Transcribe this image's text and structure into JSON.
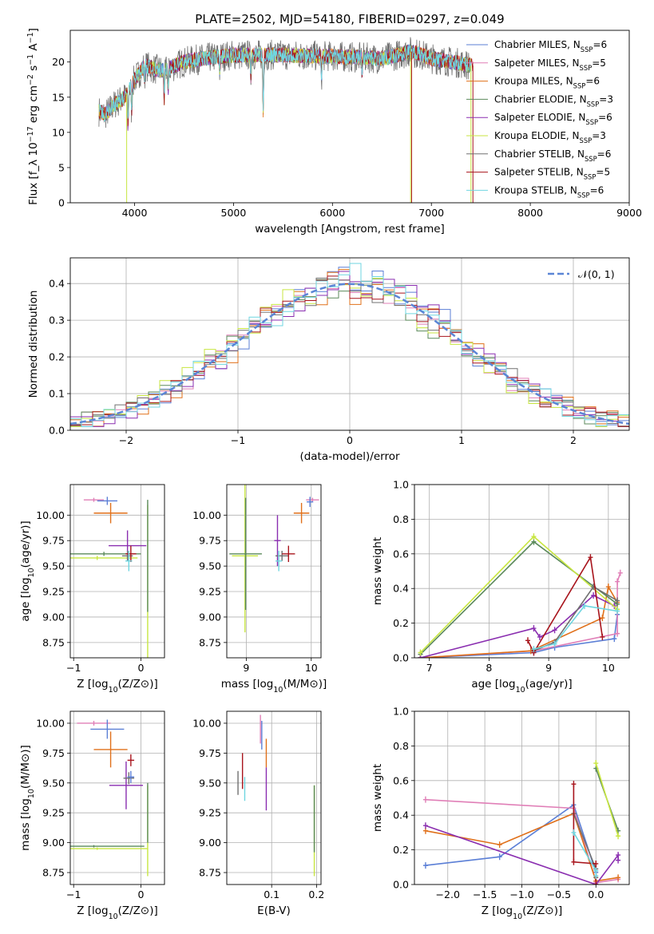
{
  "figure": {
    "title": "PLATE=2502, MJD=54180, FIBERID=0297, z=0.049"
  },
  "colors": {
    "Chabrier MILES": "#5b7fd6",
    "Salpeter MILES": "#e07fb7",
    "Kroupa MILES": "#e0701a",
    "Chabrier ELODIE": "#5b8a5b",
    "Salpeter ELODIE": "#8a2eb0",
    "Kroupa ELODIE": "#c8e641",
    "Chabrier STELIB": "#707070",
    "Salpeter STELIB": "#a8141c",
    "Kroupa STELIB": "#6fd6e0",
    "normal": "#5b86d6"
  },
  "chart_data": [
    {
      "id": "spectrum",
      "type": "line",
      "title": "PLATE=2502, MJD=54180, FIBERID=0297, z=0.049",
      "xlabel": "wavelength [Angstrom, rest frame]",
      "ylabel": "Flux [f_λ 10^-17 erg cm^-2 s^-1 A^-1]",
      "xlim": [
        3350,
        9000
      ],
      "ylim": [
        0,
        24.5
      ],
      "xticks": [
        4000,
        5000,
        6000,
        7000,
        8000,
        9000
      ],
      "yticks": [
        0,
        5,
        10,
        15,
        20
      ],
      "grid": false,
      "legend_position": "top-right",
      "legend": [
        "Chabrier MILES, N_SSP=6",
        "Salpeter MILES, N_SSP=5",
        "Kroupa MILES, N_SSP=6",
        "Chabrier ELODIE, N_SSP=3",
        "Salpeter ELODIE, N_SSP=6",
        "Kroupa ELODIE, N_SSP=3",
        "Chabrier STELIB, N_SSP=6",
        "Salpeter STELIB, N_SSP=5",
        "Kroupa STELIB, N_SSP=6"
      ],
      "continuum": {
        "x": [
          3640,
          3700,
          3800,
          3900,
          4000,
          4100,
          4200,
          4300,
          4500,
          4700,
          5000,
          5500,
          6000,
          6500,
          6800,
          7000,
          7300,
          7400
        ],
        "y": [
          13,
          12.5,
          14,
          15,
          17.5,
          19.5,
          19,
          18.8,
          20,
          20.5,
          21,
          21,
          20.8,
          20.5,
          21.5,
          20.5,
          19.8,
          19.5
        ]
      },
      "model_end": {
        "Salpeter STELIB": 7420,
        "others": 7400
      },
      "features": [
        {
          "x": 3934,
          "depth": 5
        },
        {
          "x": 3970,
          "depth": 4
        },
        {
          "x": 4101,
          "depth": 2
        },
        {
          "x": 4300,
          "depth": 4
        },
        {
          "x": 4340,
          "depth": 3
        },
        {
          "x": 4861,
          "depth": 2
        },
        {
          "x": 5175,
          "depth": 3
        },
        {
          "x": 5300,
          "depth": 8
        },
        {
          "x": 5890,
          "depth": 3
        },
        {
          "x": 6300,
          "depth": 2
        }
      ],
      "spikes": [
        {
          "x": 3920,
          "to": 0,
          "series": "Kroupa ELODIE"
        },
        {
          "x": 6800,
          "to": 0,
          "series": "Salpeter STELIB"
        },
        {
          "x": 6790,
          "to": 0,
          "series": "Kroupa ELODIE"
        },
        {
          "x": 7420,
          "to": 0,
          "series": "Salpeter STELIB"
        },
        {
          "x": 7400,
          "to": 0,
          "series": "Kroupa ELODIE"
        }
      ]
    },
    {
      "id": "residuals",
      "type": "histogram",
      "xlabel": "(data-model)/error",
      "ylabel": "Normed distribution",
      "xlim": [
        -2.5,
        2.5
      ],
      "ylim": [
        0,
        0.47
      ],
      "xticks": [
        -2,
        -1,
        0,
        1,
        2
      ],
      "yticks": [
        0,
        0.1,
        0.2,
        0.3,
        0.4
      ],
      "grid": true,
      "legend_position": "top-right",
      "reference_curve": {
        "label": "N(0,1)",
        "mean": 0,
        "sigma": 1,
        "style": "dashed"
      },
      "bin_width": 0.1,
      "series_offsets": [
        0.01,
        -0.015,
        0.02,
        -0.01,
        0.015,
        -0.02,
        0.005,
        -0.005,
        0.012
      ]
    },
    {
      "id": "age-vs-Z",
      "type": "scatter",
      "xlabel": "Z [log10(Z/Z⊙)]",
      "ylabel": "age [log10(age/yr)]",
      "xlim": [
        -1.05,
        0.35
      ],
      "ylim": [
        8.6,
        10.3
      ],
      "xticks": [
        -1,
        0
      ],
      "yticks": [
        8.75,
        9.0,
        9.25,
        9.5,
        9.75,
        10.0
      ],
      "grid": true,
      "points": [
        {
          "series": "Salpeter MILES",
          "x": -0.7,
          "y": 10.15,
          "xerr": 0.15,
          "yerr": 0.02
        },
        {
          "series": "Chabrier MILES",
          "x": -0.5,
          "y": 10.14,
          "xerr": 0.15,
          "yerr": 0.04
        },
        {
          "series": "Kroupa MILES",
          "x": -0.45,
          "y": 10.02,
          "xerr": 0.25,
          "yerr": 0.1
        },
        {
          "series": "Salpeter ELODIE",
          "x": -0.2,
          "y": 9.7,
          "xerr": 0.28,
          "yerr": 0.15
        },
        {
          "series": "Chabrier ELODIE",
          "x": -0.55,
          "y": 9.62,
          "xerr": 0.55,
          "yerr": 0.02
        },
        {
          "series": "Kroupa ELODIE",
          "x": -0.65,
          "y": 9.58,
          "xerr": 0.6,
          "yerr": 0.02
        },
        {
          "series": "Chabrier STELIB",
          "x": -0.2,
          "y": 9.6,
          "xerr": 0.08,
          "yerr": 0.05
        },
        {
          "series": "Salpeter STELIB",
          "x": -0.15,
          "y": 9.62,
          "xerr": 0.08,
          "yerr": 0.08
        },
        {
          "series": "Kroupa STELIB",
          "x": -0.18,
          "y": 9.55,
          "xerr": 0.05,
          "yerr": 0.1
        },
        {
          "series": "Kroupa ELODIE",
          "x": 0.1,
          "y": 9.35,
          "xerr": 0,
          "yerr": 0.75
        },
        {
          "series": "Chabrier ELODIE",
          "x": 0.1,
          "y": 9.6,
          "xerr": 0,
          "yerr": 0.55
        }
      ]
    },
    {
      "id": "age-vs-mass",
      "type": "scatter",
      "xlabel": "mass [log10(M/M⊙)]",
      "ylabel": "",
      "xlim": [
        8.7,
        10.15
      ],
      "ylim": [
        8.6,
        10.3
      ],
      "xticks": [
        9,
        10
      ],
      "yticks": [
        8.75,
        9.0,
        9.25,
        9.5,
        9.75,
        10.0
      ],
      "grid": true,
      "points": [
        {
          "series": "Kroupa ELODIE",
          "x": 8.98,
          "y": 9.6,
          "xerr": 0.2,
          "yerr": 0.75
        },
        {
          "series": "Chabrier ELODIE",
          "x": 8.99,
          "y": 9.62,
          "xerr": 0.25,
          "yerr": 0.55
        },
        {
          "series": "Salpeter ELODIE",
          "x": 9.48,
          "y": 9.75,
          "xerr": 0.05,
          "yerr": 0.25
        },
        {
          "series": "Kroupa MILES",
          "x": 9.85,
          "y": 10.02,
          "xerr": 0.12,
          "yerr": 0.1
        },
        {
          "series": "Salpeter MILES",
          "x": 10.02,
          "y": 10.15,
          "xerr": 0.1,
          "yerr": 0.02
        },
        {
          "series": "Chabrier MILES",
          "x": 9.98,
          "y": 10.13,
          "xerr": 0.05,
          "yerr": 0.05
        },
        {
          "series": "Chabrier STELIB",
          "x": 9.55,
          "y": 9.6,
          "xerr": 0.1,
          "yerr": 0.05
        },
        {
          "series": "Salpeter STELIB",
          "x": 9.65,
          "y": 9.62,
          "xerr": 0.1,
          "yerr": 0.08
        },
        {
          "series": "Kroupa STELIB",
          "x": 9.5,
          "y": 9.55,
          "xerr": 0.05,
          "yerr": 0.1
        }
      ]
    },
    {
      "id": "massweight-vs-age",
      "type": "line",
      "xlabel": "age [log10(age/yr)]",
      "ylabel": "mass weight",
      "xlim": [
        6.75,
        10.35
      ],
      "ylim": [
        0,
        1.0
      ],
      "xticks": [
        7,
        8,
        9,
        10
      ],
      "yticks": [
        0,
        0.2,
        0.4,
        0.6,
        0.8,
        1.0
      ],
      "grid": true,
      "series": [
        {
          "name": "Chabrier MILES",
          "x": [
            6.85,
            8.75,
            9.1,
            10.1,
            10.15
          ],
          "y": [
            0.0,
            0.03,
            0.06,
            0.11,
            0.25
          ]
        },
        {
          "name": "Salpeter MILES",
          "x": [
            6.85,
            8.75,
            10.15,
            10.15,
            10.2
          ],
          "y": [
            0.0,
            0.04,
            0.14,
            0.44,
            0.49
          ]
        },
        {
          "name": "Kroupa MILES",
          "x": [
            6.85,
            8.7,
            9.9,
            10.0,
            10.15
          ],
          "y": [
            0.0,
            0.04,
            0.23,
            0.41,
            0.32
          ]
        },
        {
          "name": "Chabrier ELODIE",
          "x": [
            6.85,
            8.75,
            10.15
          ],
          "y": [
            0.02,
            0.67,
            0.31
          ]
        },
        {
          "name": "Salpeter ELODIE",
          "x": [
            6.85,
            8.75,
            8.85,
            9.1,
            9.75,
            10.1
          ],
          "y": [
            0.0,
            0.17,
            0.12,
            0.16,
            0.36,
            0.3
          ]
        },
        {
          "name": "Kroupa ELODIE",
          "x": [
            6.85,
            8.75,
            10.15
          ],
          "y": [
            0.03,
            0.7,
            0.28
          ]
        },
        {
          "name": "Chabrier STELIB",
          "x": [
            8.75,
            9.1,
            9.75,
            10.15
          ],
          "y": [
            0.04,
            0.09,
            0.41,
            0.33
          ]
        },
        {
          "name": "Salpeter STELIB",
          "x": [
            8.65,
            8.75,
            9.7,
            9.9
          ],
          "y": [
            0.1,
            0.03,
            0.58,
            0.12
          ]
        },
        {
          "name": "Kroupa STELIB",
          "x": [
            8.75,
            9.1,
            9.6,
            10.15
          ],
          "y": [
            0.05,
            0.08,
            0.3,
            0.27
          ]
        }
      ]
    },
    {
      "id": "mass-vs-Z",
      "type": "scatter",
      "xlabel": "Z [log10(Z/Z⊙)]",
      "ylabel": "mass [log10(M/M⊙)]",
      "xlim": [
        -1.05,
        0.35
      ],
      "ylim": [
        8.65,
        10.1
      ],
      "xticks": [
        -1,
        0
      ],
      "yticks": [
        8.75,
        9.0,
        9.25,
        9.5,
        9.75,
        10.0
      ],
      "grid": true,
      "points": [
        {
          "series": "Salpeter MILES",
          "x": -0.7,
          "y": 10.0,
          "xerr": 0.25,
          "yerr": 0.02
        },
        {
          "series": "Chabrier MILES",
          "x": -0.5,
          "y": 9.95,
          "xerr": 0.25,
          "yerr": 0.08
        },
        {
          "series": "Kroupa MILES",
          "x": -0.45,
          "y": 9.78,
          "xerr": 0.25,
          "yerr": 0.15
        },
        {
          "series": "Salpeter STELIB",
          "x": -0.15,
          "y": 9.69,
          "xerr": 0.05,
          "yerr": 0.05
        },
        {
          "series": "Salpeter ELODIE",
          "x": -0.22,
          "y": 9.48,
          "xerr": 0.25,
          "yerr": 0.2
        },
        {
          "series": "Chabrier STELIB",
          "x": -0.18,
          "y": 9.54,
          "xerr": 0.08,
          "yerr": 0.05
        },
        {
          "series": "Chabrier MILES",
          "x": -0.15,
          "y": 9.55,
          "xerr": 0.05,
          "yerr": 0.05
        },
        {
          "series": "Chabrier ELODIE",
          "x": -0.7,
          "y": 8.97,
          "xerr": 0.75,
          "yerr": 0.01
        },
        {
          "series": "Kroupa ELODIE",
          "x": -0.65,
          "y": 8.95,
          "xerr": 0.75,
          "yerr": 0.01
        },
        {
          "series": "Kroupa ELODIE",
          "x": 0.1,
          "y": 9.1,
          "xerr": 0,
          "yerr": 0.38
        },
        {
          "series": "Chabrier ELODIE",
          "x": 0.1,
          "y": 9.25,
          "xerr": 0,
          "yerr": 0.25
        }
      ]
    },
    {
      "id": "mass-vs-EBV",
      "type": "scatter",
      "xlabel": "E(B-V)",
      "ylabel": "",
      "xlim": [
        0.0,
        0.21
      ],
      "ylim": [
        8.65,
        10.1
      ],
      "xticks": [
        0.1,
        0.2
      ],
      "yticks": [
        8.75,
        9.0,
        9.25,
        9.5,
        9.75,
        10.0
      ],
      "grid": true,
      "points": [
        {
          "series": "Chabrier STELIB",
          "x": 0.025,
          "y": 9.5,
          "xerr": 0,
          "yerr": 0.1
        },
        {
          "series": "Salpeter STELIB",
          "x": 0.035,
          "y": 9.6,
          "xerr": 0,
          "yerr": 0.15
        },
        {
          "series": "Kroupa STELIB",
          "x": 0.04,
          "y": 9.45,
          "xerr": 0,
          "yerr": 0.1
        },
        {
          "series": "Salpeter MILES",
          "x": 0.075,
          "y": 9.95,
          "xerr": 0,
          "yerr": 0.12
        },
        {
          "series": "Chabrier MILES",
          "x": 0.078,
          "y": 9.9,
          "xerr": 0,
          "yerr": 0.12
        },
        {
          "series": "Kroupa MILES",
          "x": 0.088,
          "y": 9.75,
          "xerr": 0,
          "yerr": 0.12
        },
        {
          "series": "Salpeter ELODIE",
          "x": 0.088,
          "y": 9.45,
          "xerr": 0,
          "yerr": 0.18
        },
        {
          "series": "Kroupa ELODIE",
          "x": 0.195,
          "y": 9.1,
          "xerr": 0,
          "yerr": 0.38
        },
        {
          "series": "Chabrier ELODIE",
          "x": 0.195,
          "y": 9.2,
          "xerr": 0,
          "yerr": 0.28
        }
      ]
    },
    {
      "id": "massweight-vs-Z",
      "type": "line",
      "xlabel": "Z [log10(Z/Z⊙)]",
      "ylabel": "mass weight",
      "xlim": [
        -2.45,
        0.45
      ],
      "ylim": [
        0,
        1.0
      ],
      "xticks": [
        -2.0,
        -1.5,
        -1.0,
        -0.5,
        0.0
      ],
      "yticks": [
        0,
        0.2,
        0.4,
        0.6,
        0.8,
        1.0
      ],
      "grid": true,
      "series": [
        {
          "name": "Chabrier MILES",
          "x": [
            -2.3,
            -1.3,
            -0.3,
            0.0,
            0.0
          ],
          "y": [
            0.11,
            0.16,
            0.46,
            0.07,
            0.02
          ]
        },
        {
          "name": "Salpeter MILES",
          "x": [
            -2.3,
            -0.3,
            0.0,
            0.0,
            0.3
          ],
          "y": [
            0.49,
            0.44,
            0.02,
            0.01,
            0.03
          ]
        },
        {
          "name": "Kroupa MILES",
          "x": [
            -2.3,
            -1.3,
            -0.3,
            0.0,
            0.3
          ],
          "y": [
            0.31,
            0.23,
            0.41,
            0.02,
            0.04
          ]
        },
        {
          "name": "Chabrier ELODIE",
          "x": [
            0.0,
            0.3
          ],
          "y": [
            0.67,
            0.31
          ]
        },
        {
          "name": "Salpeter ELODIE",
          "x": [
            -2.3,
            0.0,
            0.3,
            0.3
          ],
          "y": [
            0.34,
            0.0,
            0.17,
            0.14
          ]
        },
        {
          "name": "Kroupa ELODIE",
          "x": [
            0.0,
            0.3
          ],
          "y": [
            0.7,
            0.28
          ]
        },
        {
          "name": "Chabrier STELIB",
          "x": [
            -0.3,
            0.0,
            0.0
          ],
          "y": [
            0.41,
            0.09,
            0.04
          ]
        },
        {
          "name": "Salpeter STELIB",
          "x": [
            -0.3,
            -0.3,
            0.0,
            0.0
          ],
          "y": [
            0.58,
            0.13,
            0.12,
            0.0
          ]
        },
        {
          "name": "Kroupa STELIB",
          "x": [
            -0.3,
            0.0,
            0.0
          ],
          "y": [
            0.3,
            0.08,
            0.05
          ]
        }
      ]
    }
  ]
}
